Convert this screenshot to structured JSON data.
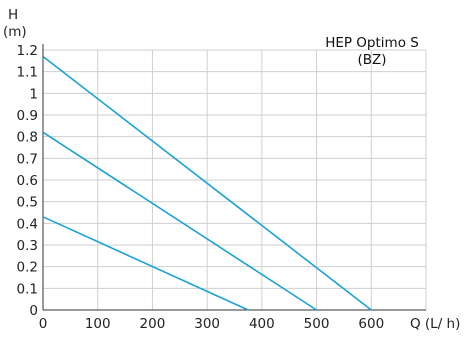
{
  "chart_data": {
    "type": "line",
    "title_line1": "HEP Optimo S",
    "title_line2": "(BZ)",
    "ylabel_line1": "H",
    "ylabel_line2": "(m)",
    "xlabel": "Q (L/ h)",
    "xlim": [
      0,
      700
    ],
    "ylim": [
      0,
      1.2
    ],
    "x_ticks": [
      0,
      100,
      200,
      300,
      400,
      500,
      600
    ],
    "y_ticks": [
      0,
      0.1,
      0.2,
      0.3,
      0.4,
      0.5,
      0.6,
      0.7,
      0.8,
      0.9,
      1,
      1.1,
      1.2
    ],
    "grid": true,
    "line_color": "#1aa3d4",
    "series": [
      {
        "x": [
          0,
          600
        ],
        "y": [
          1.17,
          0
        ]
      },
      {
        "x": [
          0,
          500
        ],
        "y": [
          0.82,
          0
        ]
      },
      {
        "x": [
          0,
          375
        ],
        "y": [
          0.43,
          0
        ]
      }
    ]
  }
}
